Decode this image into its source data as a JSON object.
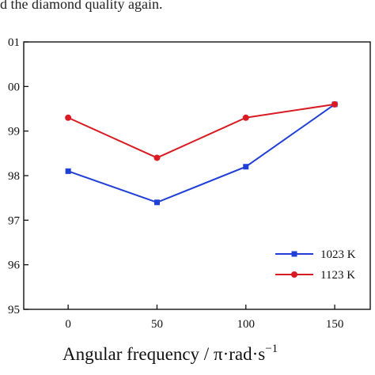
{
  "caption_fragment": "d the diamond quality again.",
  "chart_data": {
    "type": "line",
    "xlabel": "Angular frequency / π·rad·s",
    "xlabel_superscript": "−1",
    "x": [
      0,
      50,
      100,
      150
    ],
    "xticks": [
      "0",
      "50",
      "100",
      "150"
    ],
    "xlim": [
      -25,
      170
    ],
    "yticks": [
      "95",
      "96",
      "97",
      "98",
      "99",
      "00",
      "01"
    ],
    "ylim": [
      95,
      101
    ],
    "grid": false,
    "legend_position": "bottom-right",
    "series": [
      {
        "name": "1023 K",
        "color": "#1f3fd6",
        "marker": "square",
        "values": [
          98.1,
          97.4,
          98.2,
          99.6
        ]
      },
      {
        "name": "1123 K",
        "color": "#d91c24",
        "marker": "circle",
        "values": [
          99.3,
          98.4,
          99.3,
          99.6
        ]
      }
    ]
  }
}
